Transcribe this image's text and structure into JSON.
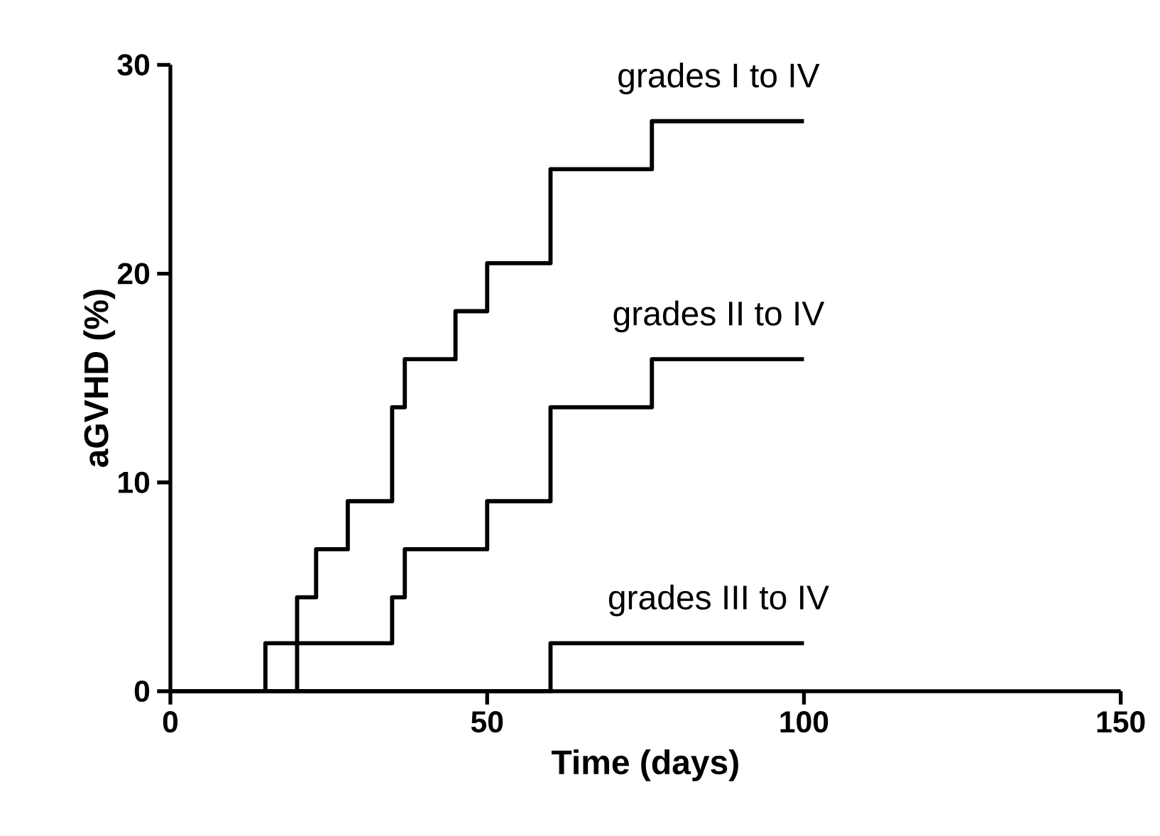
{
  "chart_data": {
    "type": "step",
    "xlabel": "Time (days)",
    "ylabel": "aGVHD (%)",
    "xlim": [
      0,
      150
    ],
    "ylim": [
      0,
      30
    ],
    "xticks": [
      0,
      50,
      100,
      150
    ],
    "yticks": [
      0,
      10,
      20,
      30
    ],
    "grid": false,
    "legend": false,
    "series": [
      {
        "name": "grades I to IV",
        "color": "#000000",
        "x": [
          0,
          20,
          23,
          28,
          35,
          37,
          45,
          50,
          60,
          76,
          100
        ],
        "values": [
          0,
          4.5,
          6.8,
          9.1,
          13.6,
          15.9,
          18.2,
          20.5,
          25,
          27.3,
          27.3
        ]
      },
      {
        "name": "grades II to IV",
        "color": "#000000",
        "x": [
          0,
          15,
          35,
          37,
          50,
          60,
          76,
          100
        ],
        "values": [
          0,
          2.3,
          4.5,
          6.8,
          9.1,
          13.6,
          15.9,
          15.9
        ]
      },
      {
        "name": "grades III to IV",
        "color": "#000000",
        "x": [
          0,
          60,
          100
        ],
        "values": [
          0,
          2.3,
          2.3
        ]
      }
    ]
  }
}
